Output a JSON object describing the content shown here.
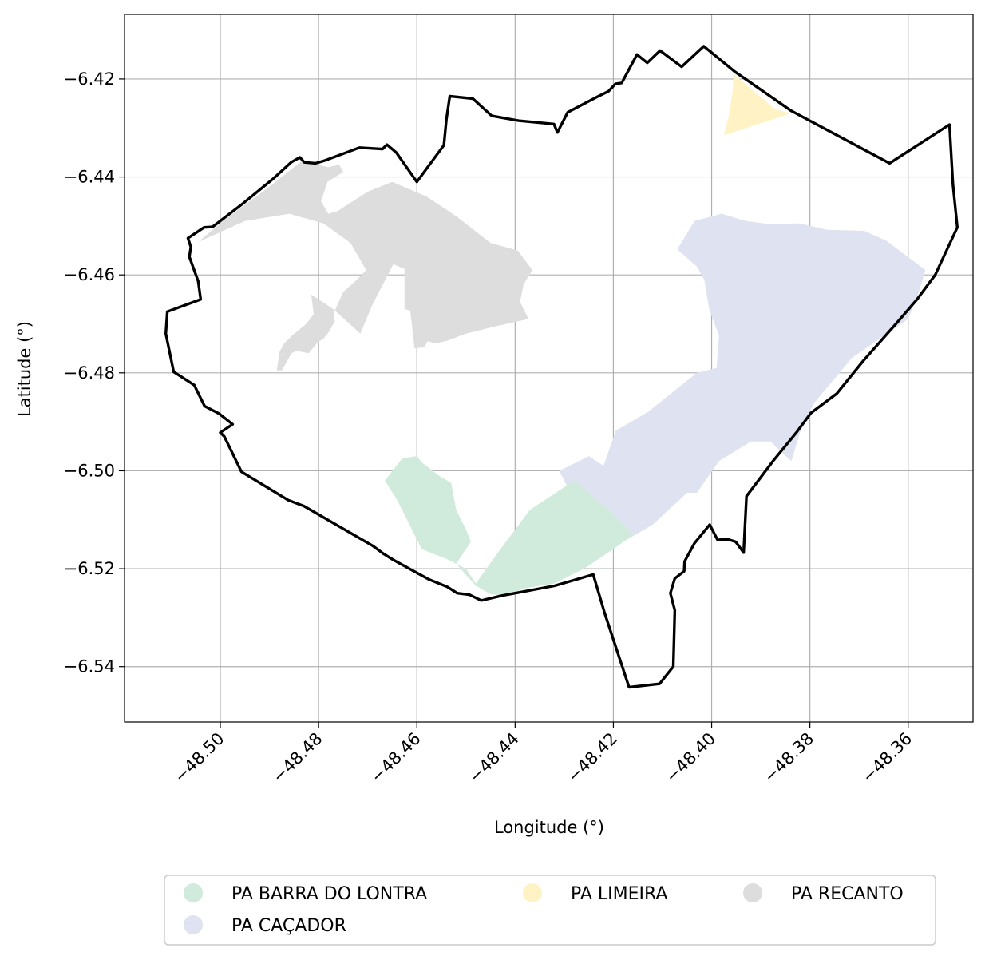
{
  "axes": {
    "xlabel": "Longitude (°)",
    "ylabel": "Latitude (°)",
    "xlim": [
      -48.5195,
      -48.3468
    ],
    "ylim": [
      -6.5513,
      -6.4068
    ],
    "xticks": [
      -48.5,
      -48.48,
      -48.46,
      -48.44,
      -48.42,
      -48.4,
      -48.38,
      -48.36
    ],
    "yticks": [
      -6.42,
      -6.44,
      -6.46,
      -6.48,
      -6.5,
      -6.52,
      -6.54
    ],
    "xtick_labels": [
      "−48.50",
      "−48.48",
      "−48.46",
      "−48.44",
      "−48.42",
      "−48.40",
      "−48.38",
      "−48.36"
    ],
    "ytick_labels": [
      "−6.42",
      "−6.44",
      "−6.46",
      "−6.48",
      "−6.50",
      "−6.52",
      "−6.54"
    ],
    "grid": true,
    "xtick_rotation": 45
  },
  "legend": {
    "placement": "bottom-center",
    "columns": 3,
    "items": [
      {
        "label": "PA BARRA DO LONTRA",
        "color": "#d0ebdc"
      },
      {
        "label": "PA CAÇADOR",
        "color": "#dfe2f1"
      },
      {
        "label": "PA LIMEIRA",
        "color": "#fff3c6"
      },
      {
        "label": "PA RECANTO",
        "color": "#dddddd"
      }
    ]
  },
  "boundary": {
    "color": "#000000",
    "coords": [
      [
        -48.5033,
        -6.4503
      ],
      [
        -48.5016,
        -6.4502
      ],
      [
        -48.4955,
        -6.4455
      ],
      [
        -48.4894,
        -6.4405
      ],
      [
        -48.4856,
        -6.437
      ],
      [
        -48.4838,
        -6.436
      ],
      [
        -48.4829,
        -6.437
      ],
      [
        -48.4806,
        -6.4372
      ],
      [
        -48.4786,
        -6.4366
      ],
      [
        -48.4717,
        -6.434
      ],
      [
        -48.467,
        -6.4343
      ],
      [
        -48.4661,
        -6.4334
      ],
      [
        -48.4642,
        -6.435
      ],
      [
        -48.46,
        -6.441
      ],
      [
        -48.4545,
        -6.4335
      ],
      [
        -48.454,
        -6.4283
      ],
      [
        -48.4533,
        -6.4235
      ],
      [
        -48.4486,
        -6.424
      ],
      [
        -48.4448,
        -6.4275
      ],
      [
        -48.4393,
        -6.4285
      ],
      [
        -48.4321,
        -6.4292
      ],
      [
        -48.4314,
        -6.4309
      ],
      [
        -48.4293,
        -6.4268
      ],
      [
        -48.4232,
        -6.4236
      ],
      [
        -48.421,
        -6.4225
      ],
      [
        -48.4196,
        -6.421
      ],
      [
        -48.4183,
        -6.4208
      ],
      [
        -48.4152,
        -6.415
      ],
      [
        -48.4131,
        -6.4167
      ],
      [
        -48.4105,
        -6.4142
      ],
      [
        -48.4061,
        -6.4175
      ],
      [
        -48.4016,
        -6.4133
      ],
      [
        -48.3953,
        -6.4185
      ],
      [
        -48.3838,
        -6.4265
      ],
      [
        -48.3638,
        -6.4372
      ],
      [
        -48.3516,
        -6.4293
      ],
      [
        -48.3509,
        -6.4415
      ],
      [
        -48.35,
        -6.4503
      ],
      [
        -48.3545,
        -6.46
      ],
      [
        -48.3582,
        -6.465
      ],
      [
        -48.3625,
        -6.47
      ],
      [
        -48.3691,
        -6.4775
      ],
      [
        -48.3745,
        -6.4842
      ],
      [
        -48.3798,
        -6.4882
      ],
      [
        -48.3826,
        -6.492
      ],
      [
        -48.3875,
        -6.498
      ],
      [
        -48.3929,
        -6.5052
      ],
      [
        -48.3935,
        -6.5167
      ],
      [
        -48.3951,
        -6.5145
      ],
      [
        -48.3967,
        -6.514
      ],
      [
        -48.3988,
        -6.5141
      ],
      [
        -48.4004,
        -6.511
      ],
      [
        -48.4035,
        -6.5148
      ],
      [
        -48.4055,
        -6.5185
      ],
      [
        -48.4056,
        -6.5205
      ],
      [
        -48.4075,
        -6.522
      ],
      [
        -48.4084,
        -6.525
      ],
      [
        -48.4075,
        -6.5285
      ],
      [
        -48.4078,
        -6.54
      ],
      [
        -48.4106,
        -6.5435
      ],
      [
        -48.4168,
        -6.5442
      ],
      [
        -48.4218,
        -6.529
      ],
      [
        -48.4241,
        -6.5212
      ],
      [
        -48.432,
        -6.5235
      ],
      [
        -48.4427,
        -6.5255
      ],
      [
        -48.4469,
        -6.5265
      ],
      [
        -48.4493,
        -6.5253
      ],
      [
        -48.4518,
        -6.525
      ],
      [
        -48.4538,
        -6.5237
      ],
      [
        -48.4575,
        -6.5222
      ],
      [
        -48.4648,
        -6.5182
      ],
      [
        -48.4667,
        -6.517
      ],
      [
        -48.469,
        -6.5153
      ],
      [
        -48.483,
        -6.5072
      ],
      [
        -48.4862,
        -6.506
      ],
      [
        -48.4957,
        -6.5002
      ],
      [
        -48.4992,
        -6.493
      ],
      [
        -48.5,
        -6.4922
      ],
      [
        -48.4975,
        -6.4905
      ],
      [
        -48.5003,
        -6.4883
      ],
      [
        -48.5032,
        -6.4868
      ],
      [
        -48.5053,
        -6.4825
      ],
      [
        -48.5095,
        -6.4798
      ],
      [
        -48.5111,
        -6.472
      ],
      [
        -48.5108,
        -6.4675
      ],
      [
        -48.504,
        -6.465
      ],
      [
        -48.5045,
        -6.4613
      ],
      [
        -48.5063,
        -6.4563
      ],
      [
        -48.506,
        -6.4543
      ],
      [
        -48.5066,
        -6.4525
      ],
      [
        -48.5033,
        -6.4503
      ]
    ]
  },
  "areas": [
    {
      "name": "PA RECANTO",
      "color": "#dddddd",
      "coords": [
        [
          -48.5045,
          -6.4533
        ],
        [
          -48.4995,
          -6.449
        ],
        [
          -48.49,
          -6.442
        ],
        [
          -48.4835,
          -6.4368
        ],
        [
          -48.478,
          -6.438
        ],
        [
          -48.4758,
          -6.4375
        ],
        [
          -48.475,
          -6.439
        ],
        [
          -48.4782,
          -6.441
        ],
        [
          -48.4795,
          -6.445
        ],
        [
          -48.478,
          -6.4475
        ],
        [
          -48.4762,
          -6.447
        ],
        [
          -48.47,
          -6.443
        ],
        [
          -48.465,
          -6.441
        ],
        [
          -48.458,
          -6.444
        ],
        [
          -48.452,
          -6.448
        ],
        [
          -48.445,
          -6.4535
        ],
        [
          -48.4395,
          -6.455
        ],
        [
          -48.4365,
          -6.459
        ],
        [
          -48.4383,
          -6.462
        ],
        [
          -48.439,
          -6.4655
        ],
        [
          -48.4373,
          -6.469
        ],
        [
          -48.444,
          -6.4705
        ],
        [
          -48.45,
          -6.472
        ],
        [
          -48.454,
          -6.4735
        ],
        [
          -48.4563,
          -6.474
        ],
        [
          -48.4578,
          -6.4735
        ],
        [
          -48.4585,
          -6.4748
        ],
        [
          -48.4605,
          -6.475
        ],
        [
          -48.4615,
          -6.4658
        ],
        [
          -48.458,
          -6.459
        ],
        [
          -48.4545,
          -6.459
        ],
        [
          -48.4533,
          -6.462
        ],
        [
          -48.4548,
          -6.469
        ],
        [
          -48.4625,
          -6.467
        ],
        [
          -48.4625,
          -6.4588
        ],
        [
          -48.4648,
          -6.4578
        ],
        [
          -48.4658,
          -6.4598
        ],
        [
          -48.469,
          -6.466
        ],
        [
          -48.4715,
          -6.472
        ],
        [
          -48.477,
          -6.467
        ],
        [
          -48.4815,
          -6.464
        ],
        [
          -48.481,
          -6.468
        ],
        [
          -48.4825,
          -6.47
        ],
        [
          -48.4855,
          -6.4725
        ],
        [
          -48.487,
          -6.474
        ],
        [
          -48.488,
          -6.4758
        ],
        [
          -48.4885,
          -6.4795
        ],
        [
          -48.4875,
          -6.4795
        ],
        [
          -48.4855,
          -6.476
        ],
        [
          -48.4845,
          -6.4755
        ],
        [
          -48.482,
          -6.476
        ],
        [
          -48.4802,
          -6.4738
        ],
        [
          -48.479,
          -6.473
        ],
        [
          -48.478,
          -6.4718
        ],
        [
          -48.4767,
          -6.4695
        ],
        [
          -48.477,
          -6.468
        ],
        [
          -48.475,
          -6.4635
        ],
        [
          -48.4722,
          -6.461
        ],
        [
          -48.4703,
          -6.459
        ],
        [
          -48.4735,
          -6.4535
        ],
        [
          -48.479,
          -6.4495
        ],
        [
          -48.486,
          -6.4475
        ],
        [
          -48.495,
          -6.449
        ],
        [
          -48.5045,
          -6.4533
        ]
      ]
    },
    {
      "name": "PA CAÇADOR",
      "color": "#dfe2f1",
      "coords": [
        [
          -48.407,
          -6.4548
        ],
        [
          -48.4035,
          -6.449
        ],
        [
          -48.398,
          -6.4475
        ],
        [
          -48.393,
          -6.449
        ],
        [
          -48.3885,
          -6.4496
        ],
        [
          -48.382,
          -6.4495
        ],
        [
          -48.3765,
          -6.4508
        ],
        [
          -48.369,
          -6.451
        ],
        [
          -48.3645,
          -6.453
        ],
        [
          -48.3565,
          -6.459
        ],
        [
          -48.358,
          -6.464
        ],
        [
          -48.36,
          -6.469
        ],
        [
          -48.3715,
          -6.477
        ],
        [
          -48.379,
          -6.486
        ],
        [
          -48.3815,
          -6.4905
        ],
        [
          -48.3838,
          -6.498
        ],
        [
          -48.386,
          -6.496
        ],
        [
          -48.388,
          -6.494
        ],
        [
          -48.392,
          -6.494
        ],
        [
          -48.3985,
          -6.498
        ],
        [
          -48.403,
          -6.5045
        ],
        [
          -48.405,
          -6.5045
        ],
        [
          -48.412,
          -6.511
        ],
        [
          -48.418,
          -6.5145
        ],
        [
          -48.4245,
          -6.5105
        ],
        [
          -48.429,
          -6.504
        ],
        [
          -48.431,
          -6.5
        ],
        [
          -48.425,
          -6.497
        ],
        [
          -48.422,
          -6.499
        ],
        [
          -48.4195,
          -6.4918
        ],
        [
          -48.413,
          -6.488
        ],
        [
          -48.403,
          -6.48
        ],
        [
          -48.399,
          -6.479
        ],
        [
          -48.3985,
          -6.4725
        ],
        [
          -48.4005,
          -6.467
        ],
        [
          -48.4015,
          -6.461
        ],
        [
          -48.403,
          -6.4583
        ],
        [
          -48.407,
          -6.4548
        ]
      ]
    },
    {
      "name": "PA BARRA DO LONTRA",
      "color": "#d0ebdc",
      "coords": [
        [
          -48.4665,
          -6.502
        ],
        [
          -48.463,
          -6.4975
        ],
        [
          -48.46,
          -6.497
        ],
        [
          -48.459,
          -6.4983
        ],
        [
          -48.4555,
          -6.501
        ],
        [
          -48.453,
          -6.5025
        ],
        [
          -48.452,
          -6.508
        ],
        [
          -48.45,
          -6.512
        ],
        [
          -48.449,
          -6.5145
        ],
        [
          -48.452,
          -6.519
        ],
        [
          -48.448,
          -6.5235
        ],
        [
          -48.445,
          -6.5252
        ],
        [
          -48.442,
          -6.5255
        ],
        [
          -48.438,
          -6.524
        ],
        [
          -48.432,
          -6.523
        ],
        [
          -48.426,
          -6.52
        ],
        [
          -48.42,
          -6.516
        ],
        [
          -48.416,
          -6.513
        ],
        [
          -48.421,
          -6.508
        ],
        [
          -48.428,
          -6.502
        ],
        [
          -48.437,
          -6.508
        ],
        [
          -48.443,
          -6.516
        ],
        [
          -48.448,
          -6.523
        ],
        [
          -48.45,
          -6.52
        ],
        [
          -48.454,
          -6.518
        ],
        [
          -48.459,
          -6.516
        ],
        [
          -48.464,
          -6.506
        ],
        [
          -48.4665,
          -6.502
        ]
      ]
    },
    {
      "name": "PA LIMEIRA",
      "color": "#fff3c6",
      "coords": [
        [
          -48.3955,
          -6.419
        ],
        [
          -48.387,
          -6.4262
        ],
        [
          -48.3838,
          -6.427
        ],
        [
          -48.3975,
          -6.4315
        ],
        [
          -48.3965,
          -6.4275
        ],
        [
          -48.3958,
          -6.423
        ],
        [
          -48.3955,
          -6.419
        ]
      ]
    }
  ]
}
